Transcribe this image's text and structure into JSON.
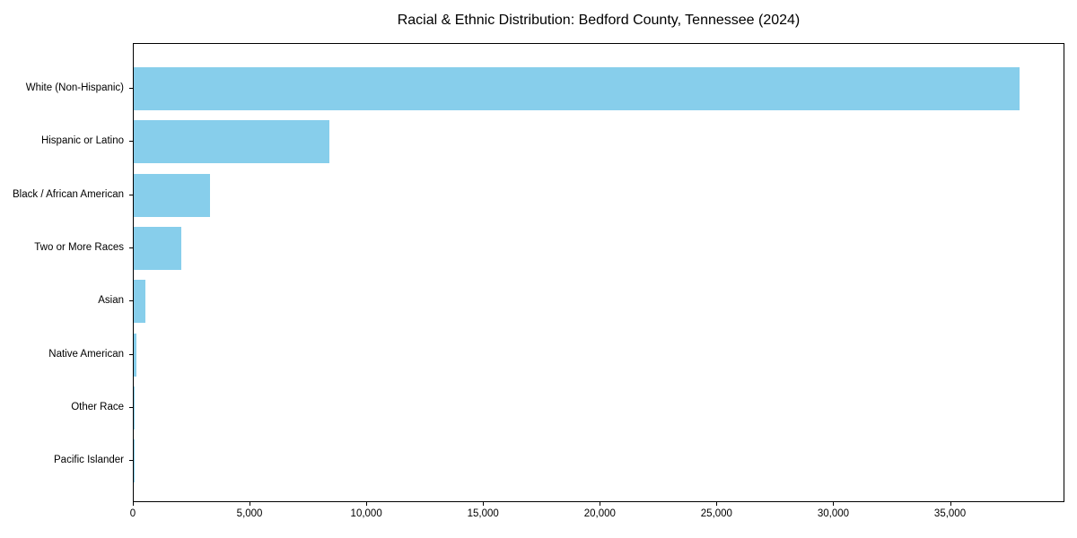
{
  "chart_data": {
    "type": "bar",
    "orientation": "horizontal",
    "title": "Racial & Ethnic Distribution: Bedford County, Tennessee (2024)",
    "xlabel": "",
    "ylabel": "",
    "categories": [
      "White (Non-Hispanic)",
      "Hispanic or Latino",
      "Black / African American",
      "Two or More Races",
      "Asian",
      "Native American",
      "Other Race",
      "Pacific Islander"
    ],
    "values": [
      38000,
      8400,
      3270,
      2050,
      510,
      110,
      50,
      25
    ],
    "xlim": [
      0,
      39900
    ],
    "xticks": [
      0,
      5000,
      10000,
      15000,
      20000,
      25000,
      30000,
      35000
    ],
    "xtick_labels": [
      "0",
      "5,000",
      "10,000",
      "15,000",
      "20,000",
      "25,000",
      "30,000",
      "35,000"
    ],
    "bar_color": "#87CEEB",
    "frame_color": "#000000",
    "background_color": "#ffffff",
    "grid": false,
    "legend": null
  }
}
